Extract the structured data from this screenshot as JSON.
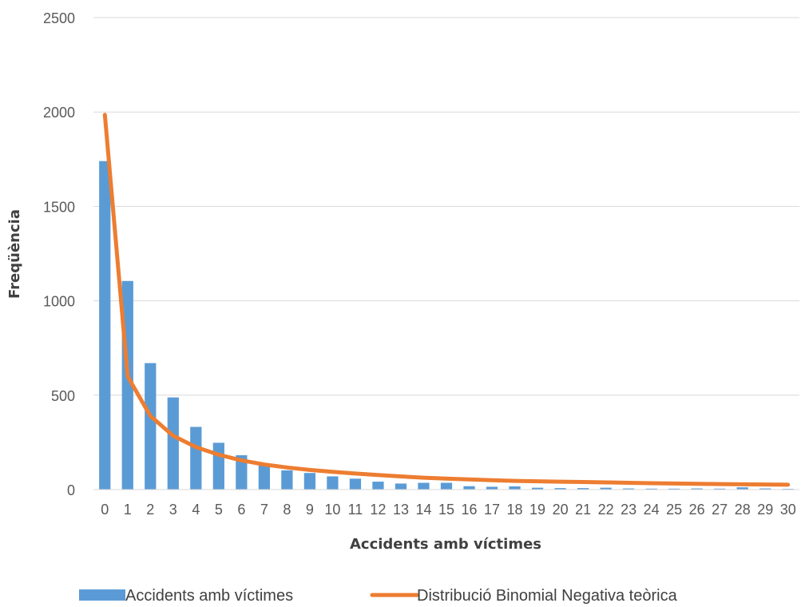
{
  "chart_data": {
    "type": "bar",
    "title": "",
    "xlabel": "Accidents amb víctimes",
    "ylabel": "Freqüència",
    "ylim": [
      0,
      2500
    ],
    "yticks": [
      0,
      500,
      1000,
      1500,
      2000,
      2500
    ],
    "grid": true,
    "legend_position": "bottom",
    "categories": [
      "0",
      "1",
      "2",
      "3",
      "4",
      "5",
      "6",
      "7",
      "8",
      "9",
      "10",
      "11",
      "12",
      "13",
      "14",
      "15",
      "16",
      "17",
      "18",
      "19",
      "20",
      "21",
      "22",
      "23",
      "24",
      "25",
      "26",
      "27",
      "28",
      "29",
      "30"
    ],
    "series": [
      {
        "name": "Accidents amb víctimes",
        "kind": "bar",
        "color": "#5B9BD5",
        "values": [
          1740,
          1105,
          670,
          488,
          332,
          248,
          182,
          128,
          102,
          88,
          70,
          58,
          42,
          32,
          36,
          36,
          18,
          15,
          17,
          10,
          8,
          8,
          10,
          6,
          5,
          5,
          6,
          5,
          12,
          6,
          4
        ]
      },
      {
        "name": "Distribució Binomial Negativa teòrica",
        "kind": "line",
        "color": "#ED7D31",
        "values": [
          1985,
          600,
          390,
          285,
          225,
          185,
          155,
          133,
          117,
          104,
          94,
          85,
          77,
          70,
          63,
          58,
          54,
          50,
          46,
          44,
          42,
          40,
          38,
          36,
          34,
          32,
          31,
          29,
          28,
          27,
          26
        ]
      }
    ]
  }
}
